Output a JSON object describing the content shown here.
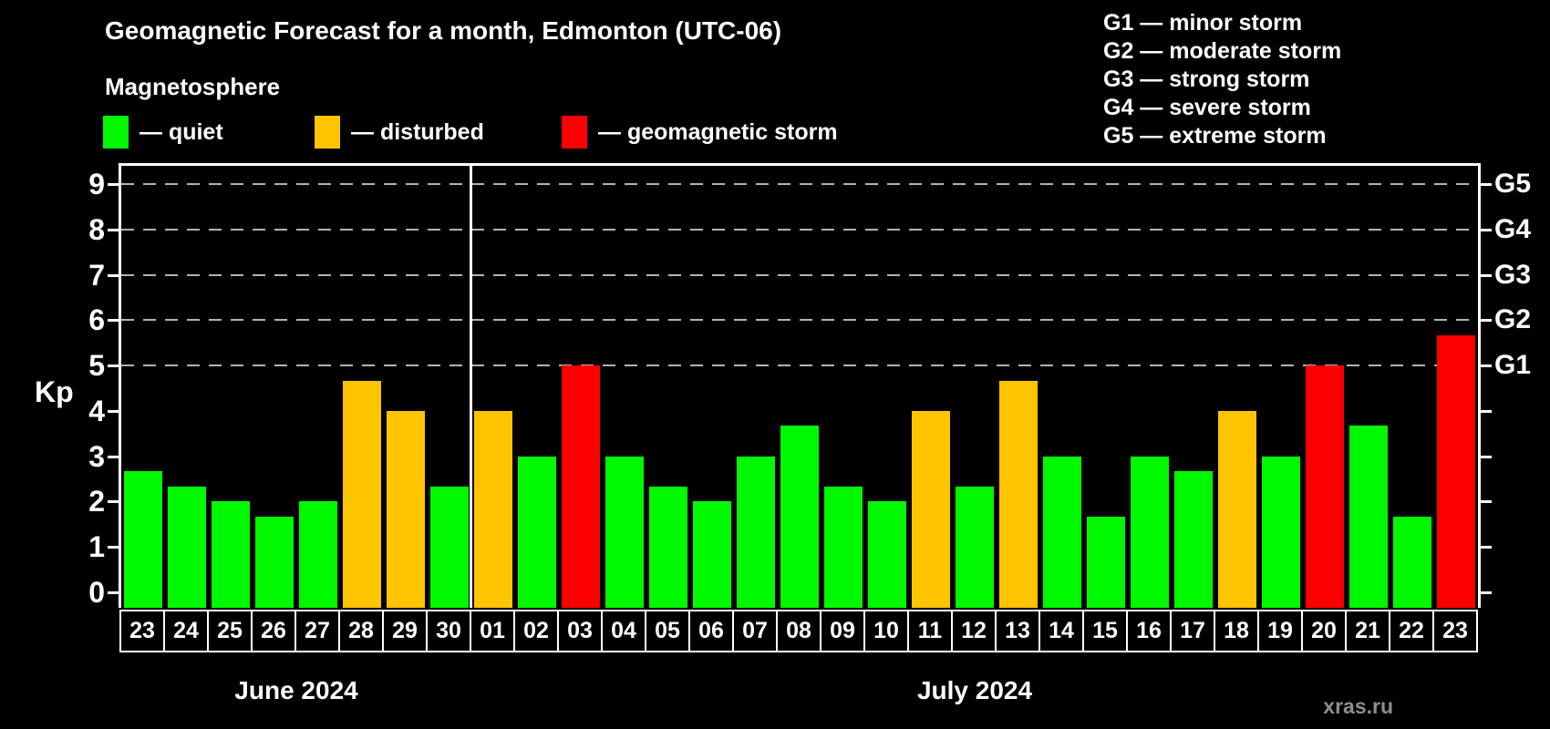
{
  "header": {
    "title": "Geomagnetic Forecast for a month, Edmonton (UTC-06)",
    "subtitle": "Magnetosphere"
  },
  "legend": {
    "items": [
      {
        "label": "— quiet",
        "level": "quiet",
        "color": "#00f800"
      },
      {
        "label": "— disturbed",
        "level": "disturbed",
        "color": "#ffc400"
      },
      {
        "label": "— geomagnetic storm",
        "level": "storm",
        "color": "#fb0000"
      }
    ]
  },
  "g_scale_legend": {
    "items": [
      "G1 — minor storm",
      "G2 — moderate storm",
      "G3 — strong storm",
      "G4 — severe storm",
      "G5 — extreme storm"
    ]
  },
  "colors": {
    "quiet": "#00f800",
    "disturbed": "#ffc400",
    "storm": "#fb0000",
    "grid": "#b3b3b3",
    "axis": "#ffffff",
    "background": "#000000"
  },
  "axes": {
    "y_label": "Kp",
    "y_ticks": [
      0,
      1,
      2,
      3,
      4,
      5,
      6,
      7,
      8,
      9
    ],
    "grid_levels": [
      5,
      6,
      7,
      8,
      9
    ],
    "right_labels": [
      {
        "label": "G1",
        "kp": 5
      },
      {
        "label": "G2",
        "kp": 6
      },
      {
        "label": "G3",
        "kp": 7
      },
      {
        "label": "G4",
        "kp": 8
      },
      {
        "label": "G5",
        "kp": 9
      }
    ]
  },
  "chart_data": {
    "type": "bar",
    "title": "Geomagnetic Forecast for a month, Edmonton (UTC-06)",
    "xlabel": "",
    "ylabel": "Kp",
    "ylim": [
      0,
      9
    ],
    "grid": "dashed horizontal at Kp 5-9 (G1-G5)",
    "legend_position": "top-left",
    "months": [
      {
        "label": "June 2024",
        "count": 8
      },
      {
        "label": "July 2024",
        "count": 23
      }
    ],
    "categories": [
      "23",
      "24",
      "25",
      "26",
      "27",
      "28",
      "29",
      "30",
      "01",
      "02",
      "03",
      "04",
      "05",
      "06",
      "07",
      "08",
      "09",
      "10",
      "11",
      "12",
      "13",
      "14",
      "15",
      "16",
      "17",
      "18",
      "19",
      "20",
      "21",
      "22",
      "23"
    ],
    "values": [
      2.67,
      2.33,
      2,
      1.67,
      2,
      4.67,
      4,
      2.33,
      4,
      3,
      5,
      3,
      2.33,
      2,
      3,
      3.67,
      2.33,
      2,
      4,
      2.33,
      4.67,
      3,
      1.67,
      3,
      2.67,
      4,
      3,
      5,
      3.67,
      1.67,
      5.67
    ],
    "levels": [
      "quiet",
      "quiet",
      "quiet",
      "quiet",
      "quiet",
      "disturbed",
      "disturbed",
      "quiet",
      "disturbed",
      "quiet",
      "storm",
      "quiet",
      "quiet",
      "quiet",
      "quiet",
      "quiet",
      "quiet",
      "quiet",
      "disturbed",
      "quiet",
      "disturbed",
      "quiet",
      "quiet",
      "quiet",
      "quiet",
      "disturbed",
      "quiet",
      "storm",
      "quiet",
      "quiet",
      "storm"
    ]
  },
  "watermark": "xras.ru"
}
